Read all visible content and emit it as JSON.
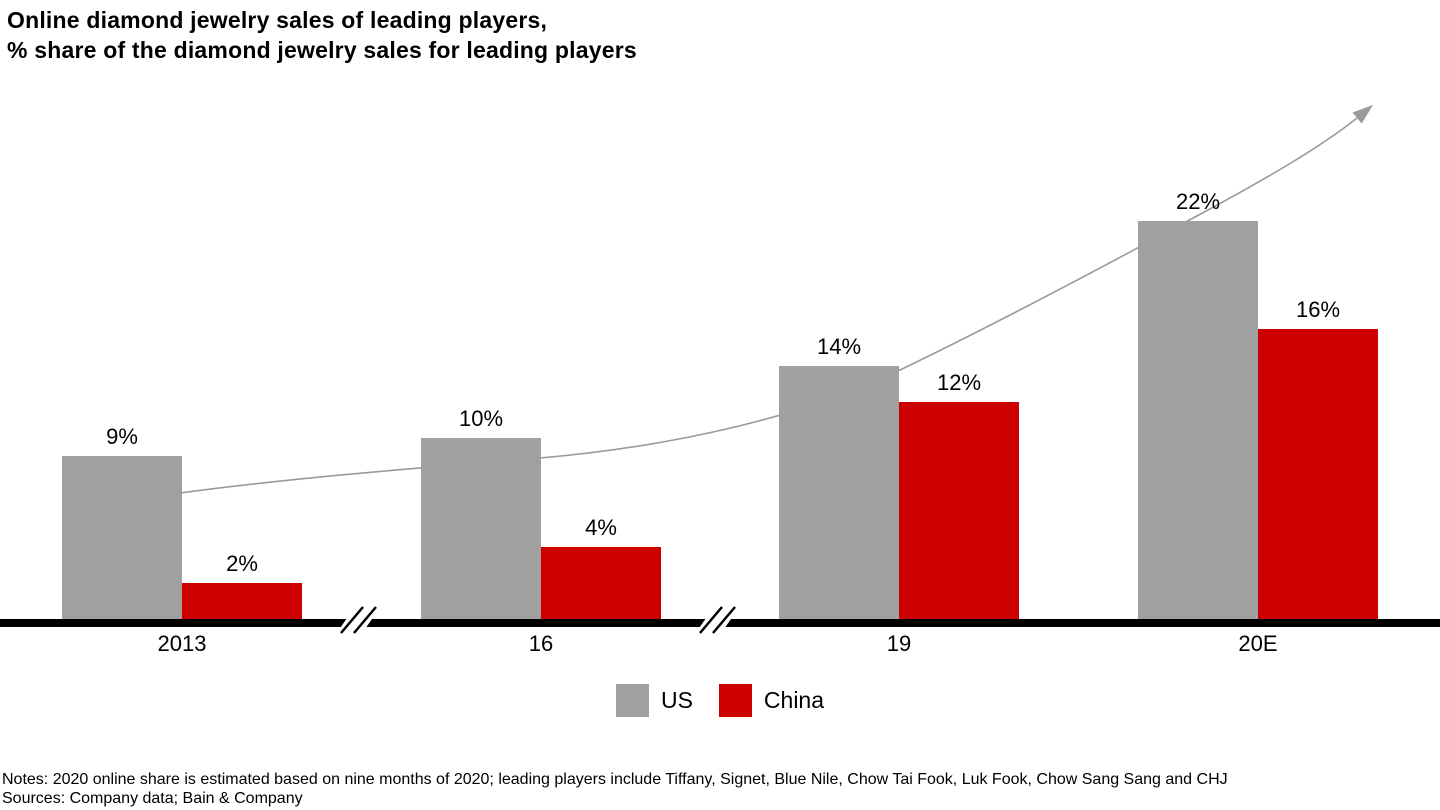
{
  "title": {
    "line1": "Online diamond jewelry sales of leading players,",
    "line2": "% share of the diamond jewelry sales for leading players"
  },
  "chart_data": {
    "type": "bar",
    "title": "Online diamond jewelry sales of leading players",
    "subtitle": "% share of the diamond jewelry sales for leading players",
    "categories": [
      "2013",
      "16",
      "19",
      "20E"
    ],
    "series": [
      {
        "name": "US",
        "color": "#a0a0a0",
        "values": [
          9,
          10,
          14,
          22
        ],
        "labels": [
          "9%",
          "10%",
          "14%",
          "22%"
        ]
      },
      {
        "name": "China",
        "color": "#cc0000",
        "values": [
          2,
          4,
          12,
          16
        ],
        "labels": [
          "2%",
          "4%",
          "12%",
          "16%"
        ]
      }
    ],
    "value_unit": "%",
    "ylim": [
      0,
      28
    ],
    "grid": false,
    "legend_position": "bottom-center",
    "axis_breaks": [
      "between 2013 and 16",
      "between 16 and 19"
    ],
    "annotations": [
      "curved upward trend arrow rising from 2013 level past the 20E bars"
    ]
  },
  "legend": {
    "items": [
      {
        "label": "US",
        "color": "#a0a0a0"
      },
      {
        "label": "China",
        "color": "#cc0000"
      }
    ]
  },
  "colors": {
    "us_bar": "#a0a0a0",
    "china_bar": "#cc0000",
    "trend_arrow": "#9a9a9a",
    "axis": "#000000",
    "background": "#ffffff"
  },
  "footer": {
    "notes": "Notes: 2020 online share is estimated based on nine months of 2020; leading players include Tiffany, Signet, Blue Nile, Chow Tai Fook, Luk Fook, Chow Sang Sang and CHJ",
    "sources": "Sources: Company data; Bain & Company"
  }
}
